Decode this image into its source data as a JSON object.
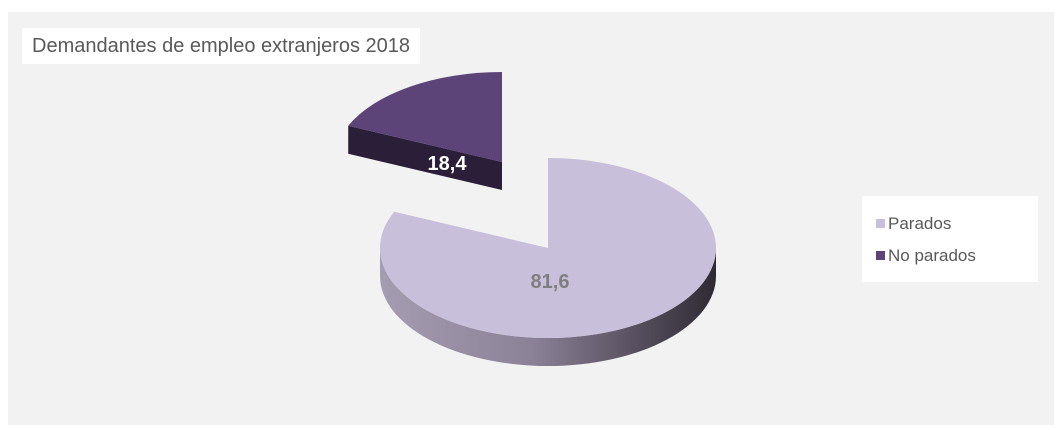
{
  "chart_data": {
    "type": "pie",
    "title": "Demandantes de empleo extranjeros 2018",
    "slices": [
      {
        "name": "Parados",
        "value": 81.6,
        "label": "81,6",
        "color": "#c8bfda",
        "label_color": "#7f7f7f"
      },
      {
        "name": "No parados",
        "value": 18.4,
        "label": "18,4",
        "color": "#5c4478",
        "label_color": "#ffffff"
      }
    ],
    "legend_position": "right",
    "style": "3d-exploded"
  }
}
